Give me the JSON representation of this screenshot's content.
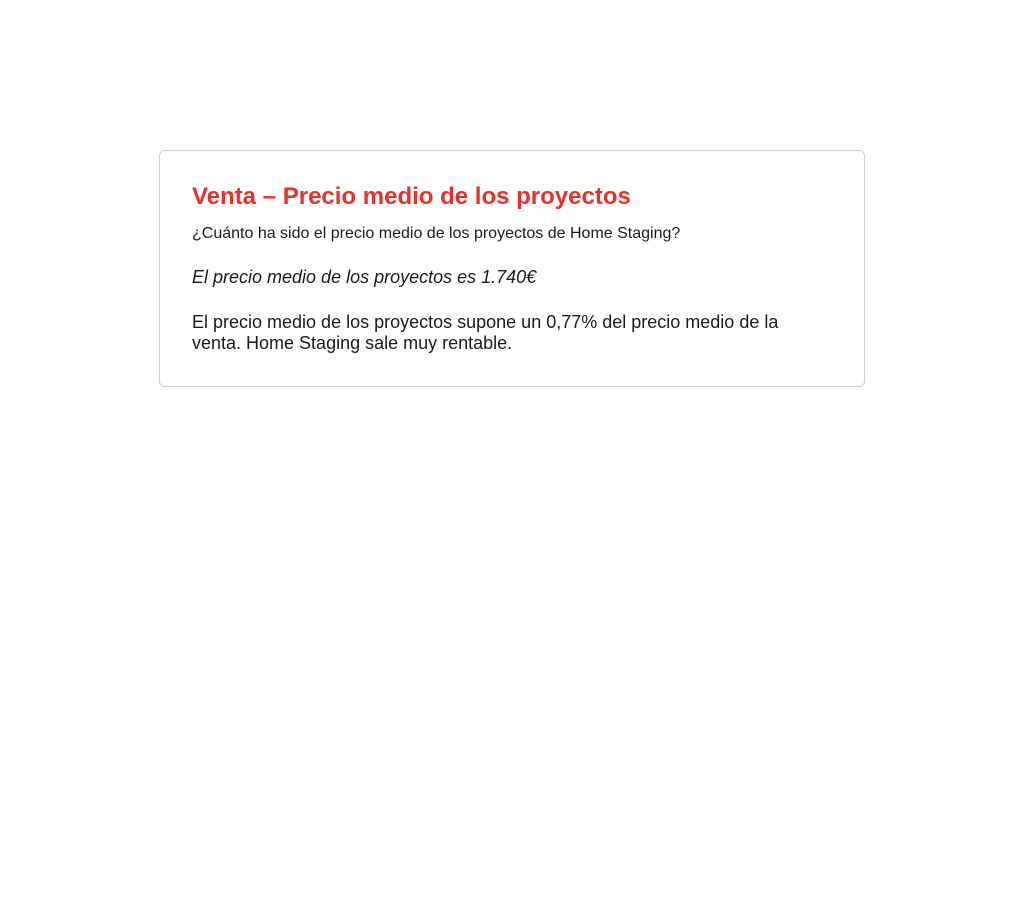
{
  "title": "Venta – Precio medio de los proyectos",
  "subtitle": "¿Cuánto ha sido el precio medio de los proyectos de Home Staging?",
  "stat": "El precio medio de los proyectos es 1.740€",
  "note": "El precio medio de los proyectos supone un 0,77% del precio medio de la venta. Home Staging sale muy rentable."
}
